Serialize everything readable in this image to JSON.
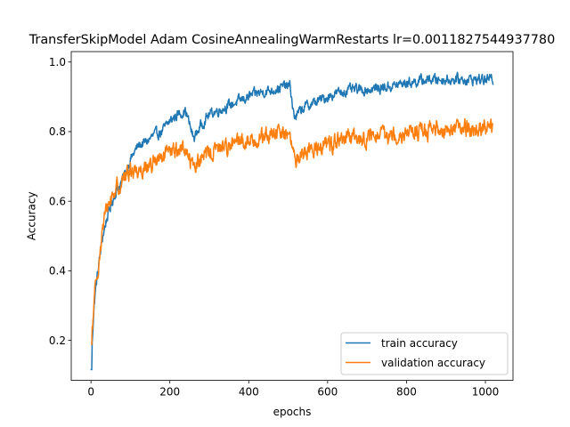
{
  "chart_data": {
    "type": "line",
    "title": "TransferSkipModel Adam CosineAnnealingWarmRestarts lr=0.0011827544937780",
    "xlabel": "epochs",
    "ylabel": "Accuracy",
    "xlim": [
      -50,
      1070
    ],
    "ylim": [
      0.085,
      1.03
    ],
    "x_ticks": [
      0,
      200,
      400,
      600,
      800,
      1000
    ],
    "y_ticks": [
      0.2,
      0.4,
      0.6,
      0.8,
      1.0
    ],
    "x_tick_labels": [
      "0",
      "200",
      "400",
      "600",
      "800",
      "1000"
    ],
    "y_tick_labels": [
      "0.2",
      "0.4",
      "0.6",
      "0.8",
      "1.0"
    ],
    "grid": false,
    "legend_position": "lower-right",
    "n_epochs": 1020,
    "series": [
      {
        "name": "train accuracy",
        "color": "#1f77b4",
        "points": [
          [
            0,
            0.12
          ],
          [
            5,
            0.24
          ],
          [
            10,
            0.33
          ],
          [
            20,
            0.42
          ],
          [
            30,
            0.5
          ],
          [
            40,
            0.55
          ],
          [
            60,
            0.62
          ],
          [
            80,
            0.66
          ],
          [
            100,
            0.72
          ],
          [
            120,
            0.76
          ],
          [
            140,
            0.77
          ],
          [
            160,
            0.79
          ],
          [
            180,
            0.8
          ],
          [
            200,
            0.83
          ],
          [
            220,
            0.85
          ],
          [
            240,
            0.86
          ],
          [
            260,
            0.78
          ],
          [
            280,
            0.82
          ],
          [
            300,
            0.85
          ],
          [
            340,
            0.87
          ],
          [
            380,
            0.89
          ],
          [
            420,
            0.91
          ],
          [
            460,
            0.92
          ],
          [
            490,
            0.93
          ],
          [
            505,
            0.93
          ],
          [
            515,
            0.84
          ],
          [
            540,
            0.87
          ],
          [
            580,
            0.89
          ],
          [
            620,
            0.91
          ],
          [
            660,
            0.92
          ],
          [
            700,
            0.92
          ],
          [
            760,
            0.93
          ],
          [
            800,
            0.94
          ],
          [
            860,
            0.95
          ],
          [
            900,
            0.95
          ],
          [
            960,
            0.95
          ],
          [
            1020,
            0.95
          ]
        ],
        "noise": 0.012
      },
      {
        "name": "validation accuracy",
        "color": "#ff7f0e",
        "points": [
          [
            0,
            0.19
          ],
          [
            5,
            0.25
          ],
          [
            10,
            0.33
          ],
          [
            20,
            0.43
          ],
          [
            30,
            0.52
          ],
          [
            40,
            0.58
          ],
          [
            60,
            0.63
          ],
          [
            80,
            0.66
          ],
          [
            100,
            0.69
          ],
          [
            120,
            0.69
          ],
          [
            140,
            0.7
          ],
          [
            160,
            0.71
          ],
          [
            180,
            0.72
          ],
          [
            200,
            0.74
          ],
          [
            220,
            0.75
          ],
          [
            240,
            0.75
          ],
          [
            260,
            0.7
          ],
          [
            280,
            0.72
          ],
          [
            300,
            0.74
          ],
          [
            340,
            0.76
          ],
          [
            380,
            0.77
          ],
          [
            420,
            0.78
          ],
          [
            460,
            0.79
          ],
          [
            500,
            0.8
          ],
          [
            515,
            0.72
          ],
          [
            540,
            0.74
          ],
          [
            580,
            0.76
          ],
          [
            620,
            0.77
          ],
          [
            660,
            0.78
          ],
          [
            700,
            0.78
          ],
          [
            760,
            0.79
          ],
          [
            800,
            0.8
          ],
          [
            860,
            0.8
          ],
          [
            900,
            0.81
          ],
          [
            960,
            0.81
          ],
          [
            1020,
            0.81
          ]
        ],
        "noise": 0.02
      }
    ]
  }
}
